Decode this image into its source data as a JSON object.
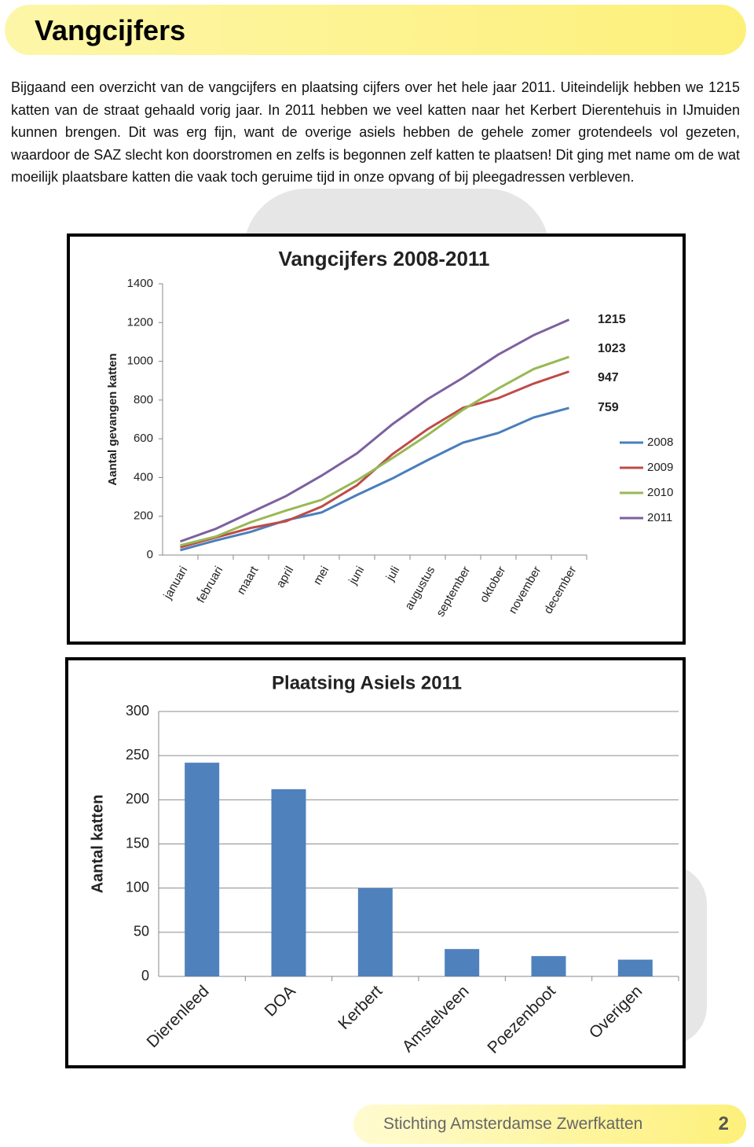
{
  "header": {
    "title": "Vangcijfers"
  },
  "body": {
    "paragraph": "Bijgaand een overzicht van de vangcijfers en plaatsing cijfers over het hele jaar 2011. Uiteindelijk hebben we 1215 katten van de straat gehaald vorig jaar. In 2011 hebben we veel katten naar het Kerbert Dierentehuis in IJmuiden kunnen brengen. Dit was erg fijn, want de overige asiels hebben de gehele zomer grotendeels vol gezeten, waardoor de SAZ  slecht kon doorstromen en zelfs is begonnen zelf katten te plaatsen! Dit ging met name om de wat moeilijk plaatsbare katten die vaak toch geruime tijd in onze opvang of bij pleegadressen verbleven."
  },
  "chart_data": [
    {
      "type": "line",
      "title": "Vangcijfers 2008-2011",
      "y_label": "Aantal gevangen katten",
      "categories": [
        "januari",
        "februari",
        "maart",
        "april",
        "mei",
        "juni",
        "juli",
        "augustus",
        "september",
        "oktober",
        "november",
        "december"
      ],
      "series": [
        {
          "name": "2008",
          "color": "#4a7ebb",
          "values": [
            25,
            75,
            120,
            180,
            220,
            310,
            395,
            490,
            580,
            630,
            710,
            759
          ]
        },
        {
          "name": "2009",
          "color": "#be4b48",
          "values": [
            40,
            90,
            140,
            175,
            250,
            360,
            520,
            650,
            760,
            810,
            885,
            947
          ]
        },
        {
          "name": "2010",
          "color": "#98b954",
          "values": [
            50,
            95,
            170,
            230,
            285,
            385,
            500,
            620,
            750,
            860,
            960,
            1023
          ]
        },
        {
          "name": "2011",
          "color": "#7d60a0",
          "values": [
            70,
            135,
            220,
            305,
            410,
            525,
            675,
            805,
            915,
            1035,
            1135,
            1215
          ]
        }
      ],
      "ylim": [
        0,
        1400
      ],
      "yticks": [
        0,
        200,
        400,
        600,
        800,
        1000,
        1200,
        1400
      ],
      "grid": false,
      "legend": "right"
    },
    {
      "type": "bar",
      "title": "Plaatsing Asiels  2011",
      "y_label": "Aantal katten",
      "categories": [
        "Dierenleed",
        "DOA",
        "Kerbert",
        "Amstelveen",
        "Poezenboot",
        "Overigen"
      ],
      "values": [
        242,
        212,
        100,
        31,
        23,
        19
      ],
      "color": "#4f81bd",
      "ylim": [
        0,
        300
      ],
      "yticks": [
        0,
        50,
        100,
        150,
        200,
        250,
        300
      ],
      "grid": true
    }
  ],
  "footer": {
    "organization": "Stichting Amsterdamse Zwerfkatten",
    "page_number": 2
  }
}
